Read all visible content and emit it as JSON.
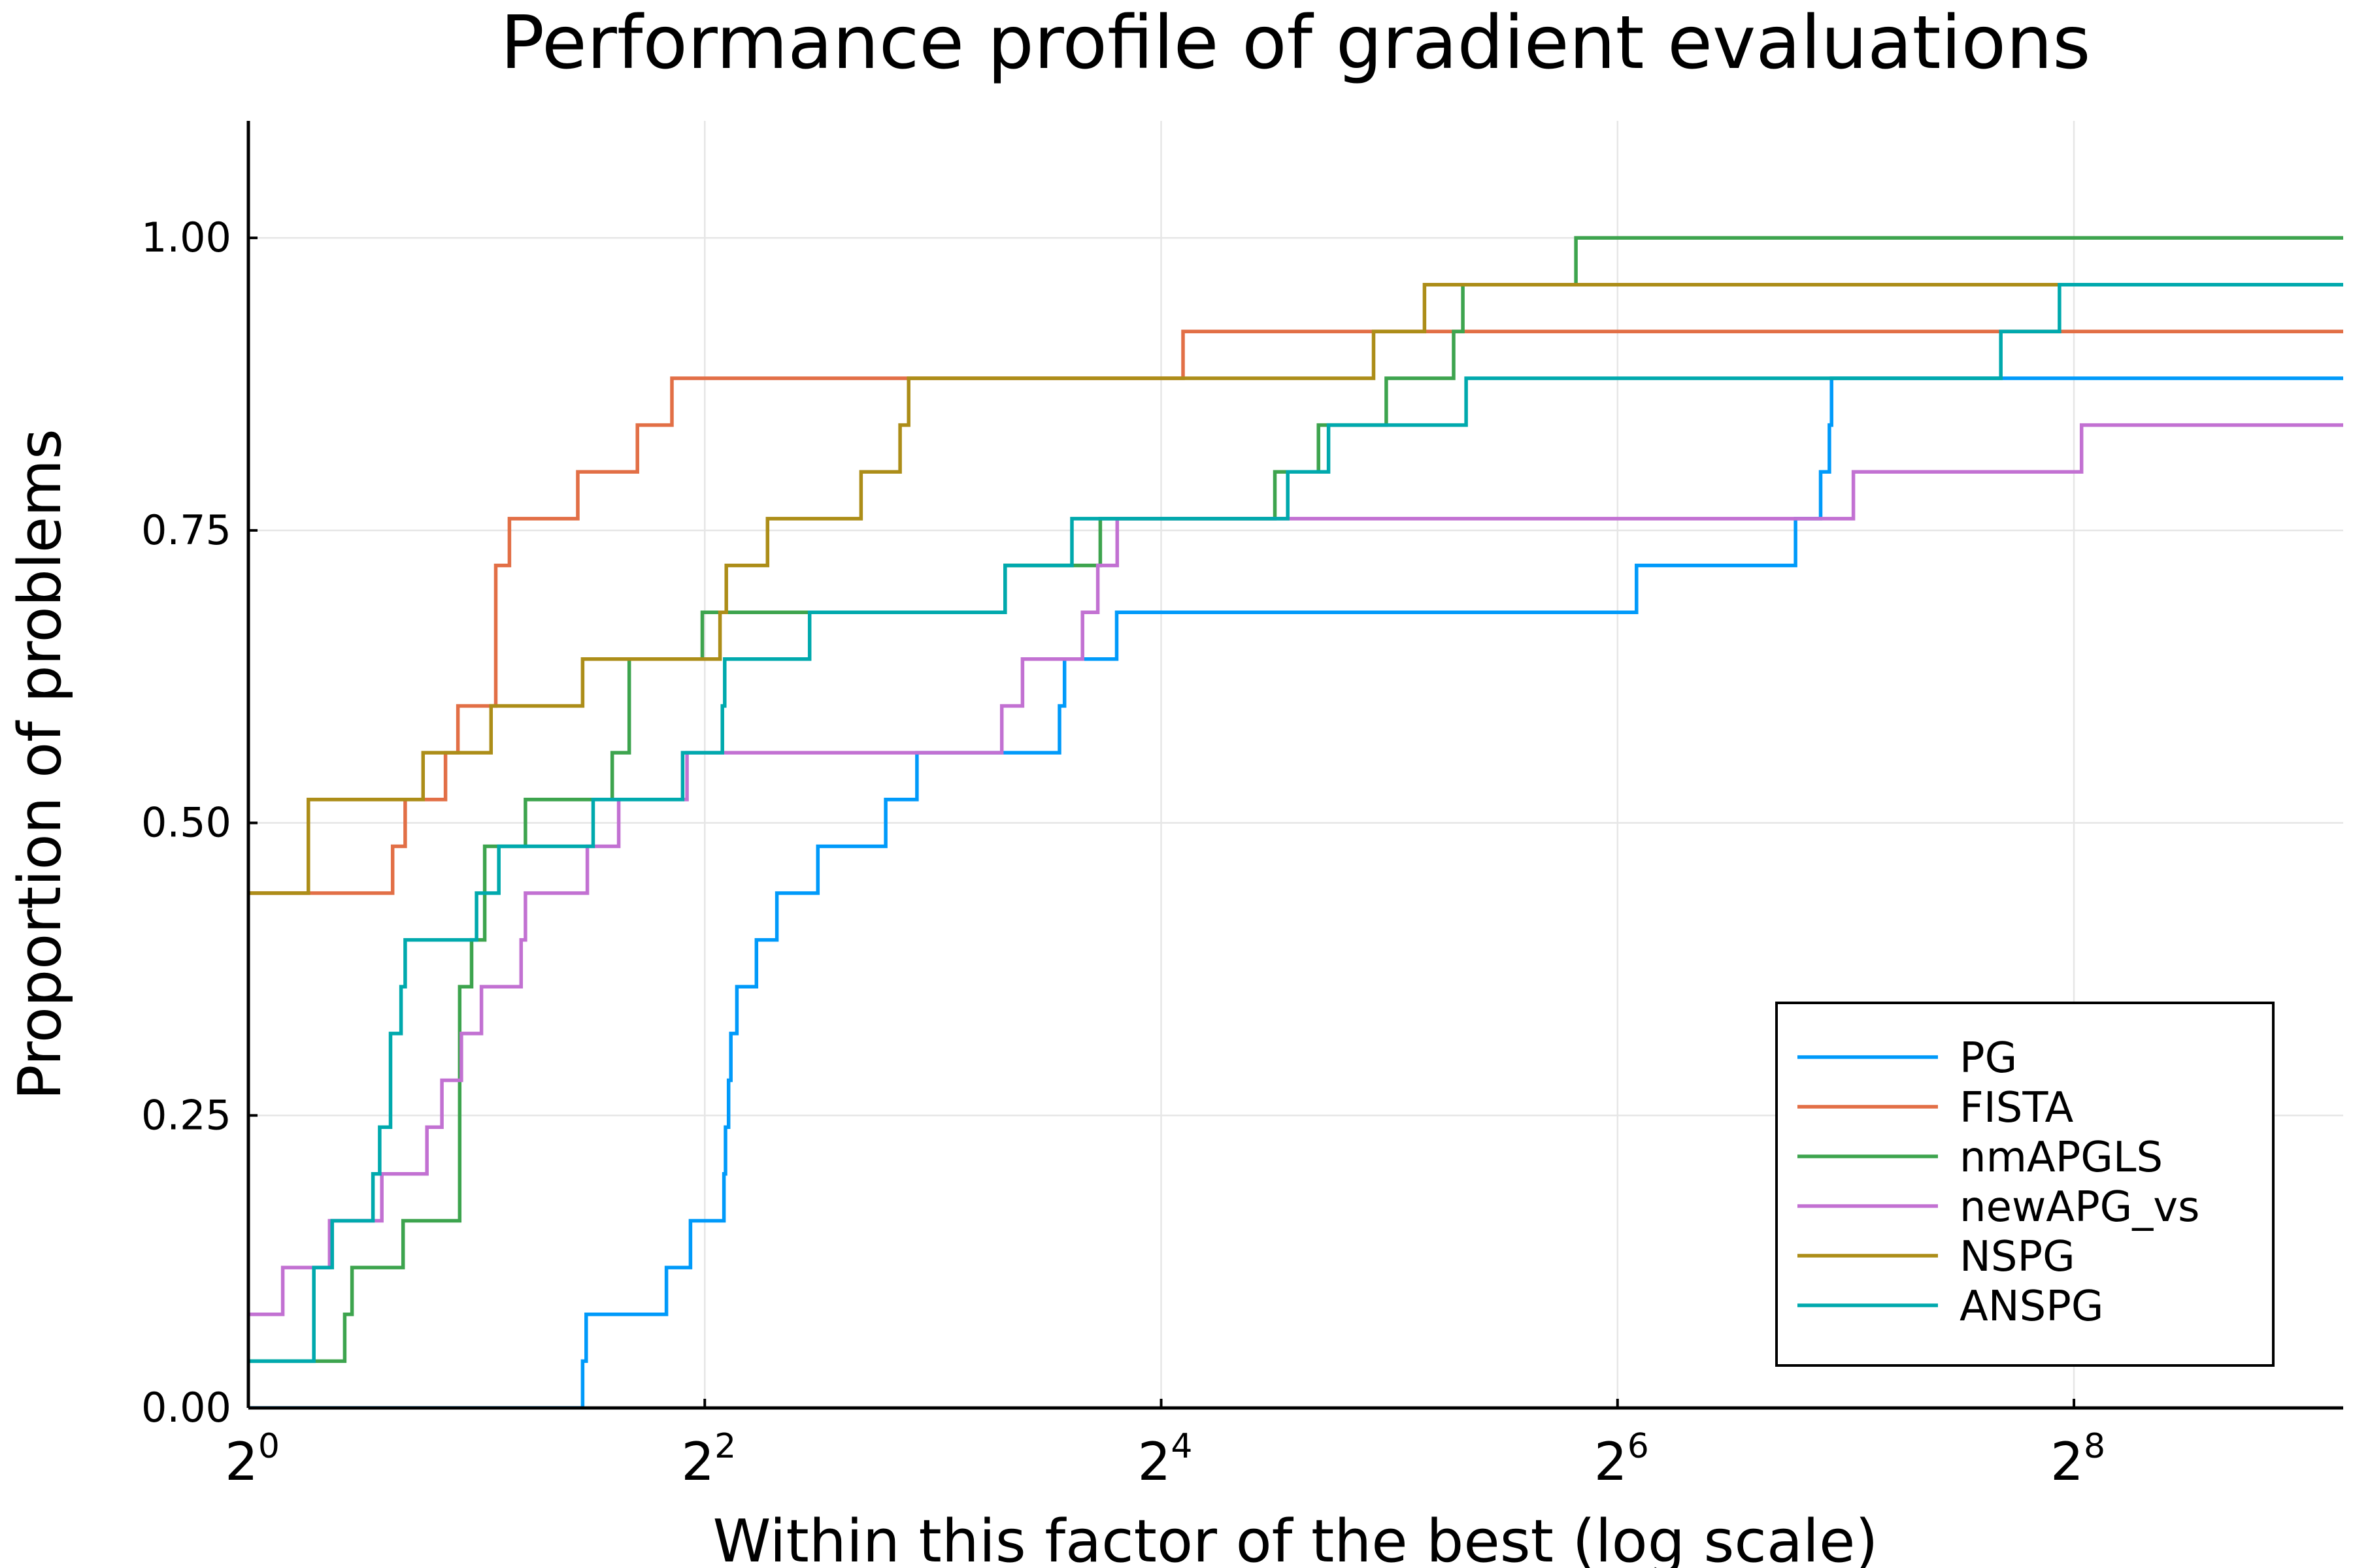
{
  "chart_data": {
    "type": "line",
    "step": true,
    "title": "Performance profile of gradient evaluations",
    "xlabel": "Within this factor of the best (log scale)",
    "ylabel": "Proportion of problems",
    "xscale": "log2",
    "xlim": [
      1,
      580
    ],
    "ylim": [
      0,
      1.1
    ],
    "x_ticks": [
      {
        "value": 1,
        "base": "2",
        "exp": "0"
      },
      {
        "value": 4,
        "base": "2",
        "exp": "2"
      },
      {
        "value": 16,
        "base": "2",
        "exp": "4"
      },
      {
        "value": 64,
        "base": "2",
        "exp": "6"
      },
      {
        "value": 256,
        "base": "2",
        "exp": "8"
      }
    ],
    "y_ticks": [
      {
        "value": 0,
        "label": "0.00"
      },
      {
        "value": 0.25,
        "label": "0.25"
      },
      {
        "value": 0.5,
        "label": "0.50"
      },
      {
        "value": 0.75,
        "label": "0.75"
      },
      {
        "value": 1,
        "label": "1.00"
      }
    ],
    "grid": true,
    "legend_position": "bottom-right",
    "series": [
      {
        "name": "PG",
        "color": "#009AFA",
        "points": [
          [
            1,
            0
          ],
          [
            2.76,
            0
          ],
          [
            2.76,
            0.04
          ],
          [
            2.79,
            0.04
          ],
          [
            2.79,
            0.08
          ],
          [
            3.56,
            0.08
          ],
          [
            3.56,
            0.12
          ],
          [
            3.83,
            0.12
          ],
          [
            3.83,
            0.16
          ],
          [
            4.24,
            0.16
          ],
          [
            4.24,
            0.2
          ],
          [
            4.26,
            0.2
          ],
          [
            4.26,
            0.24
          ],
          [
            4.3,
            0.24
          ],
          [
            4.3,
            0.28
          ],
          [
            4.33,
            0.28
          ],
          [
            4.33,
            0.32
          ],
          [
            4.41,
            0.32
          ],
          [
            4.41,
            0.36
          ],
          [
            4.68,
            0.36
          ],
          [
            4.68,
            0.4
          ],
          [
            4.98,
            0.4
          ],
          [
            4.98,
            0.44
          ],
          [
            5.64,
            0.44
          ],
          [
            5.64,
            0.48
          ],
          [
            6.93,
            0.48
          ],
          [
            6.93,
            0.52
          ],
          [
            7.62,
            0.52
          ],
          [
            7.62,
            0.56
          ],
          [
            11.75,
            0.56
          ],
          [
            11.75,
            0.6
          ],
          [
            11.93,
            0.6
          ],
          [
            11.93,
            0.64
          ],
          [
            13.98,
            0.64
          ],
          [
            13.98,
            0.68
          ],
          [
            67.8,
            0.68
          ],
          [
            67.8,
            0.72
          ],
          [
            109.9,
            0.72
          ],
          [
            109.9,
            0.76
          ],
          [
            118.6,
            0.76
          ],
          [
            118.6,
            0.8
          ],
          [
            121.8,
            0.8
          ],
          [
            121.8,
            0.84
          ],
          [
            122.6,
            0.84
          ],
          [
            122.6,
            0.88
          ],
          [
            580,
            0.88
          ]
        ]
      },
      {
        "name": "FISTA",
        "color": "#E26F46",
        "points": [
          [
            1,
            0.44
          ],
          [
            1.55,
            0.44
          ],
          [
            1.55,
            0.48
          ],
          [
            1.61,
            0.48
          ],
          [
            1.61,
            0.52
          ],
          [
            1.82,
            0.52
          ],
          [
            1.82,
            0.56
          ],
          [
            1.89,
            0.56
          ],
          [
            1.89,
            0.6
          ],
          [
            2.12,
            0.6
          ],
          [
            2.12,
            0.72
          ],
          [
            2.21,
            0.72
          ],
          [
            2.21,
            0.76
          ],
          [
            2.72,
            0.76
          ],
          [
            2.72,
            0.8
          ],
          [
            3.26,
            0.8
          ],
          [
            3.26,
            0.84
          ],
          [
            3.62,
            0.84
          ],
          [
            3.62,
            0.88
          ],
          [
            17.1,
            0.88
          ],
          [
            17.1,
            0.92
          ],
          [
            580,
            0.92
          ]
        ]
      },
      {
        "name": "nmAPGLS",
        "color": "#3DA44E",
        "points": [
          [
            1,
            0.04
          ],
          [
            1.34,
            0.04
          ],
          [
            1.34,
            0.08
          ],
          [
            1.37,
            0.08
          ],
          [
            1.37,
            0.12
          ],
          [
            1.6,
            0.12
          ],
          [
            1.6,
            0.16
          ],
          [
            1.9,
            0.16
          ],
          [
            1.9,
            0.36
          ],
          [
            1.97,
            0.36
          ],
          [
            1.97,
            0.4
          ],
          [
            2.05,
            0.4
          ],
          [
            2.05,
            0.48
          ],
          [
            2.32,
            0.48
          ],
          [
            2.32,
            0.52
          ],
          [
            3.02,
            0.52
          ],
          [
            3.02,
            0.56
          ],
          [
            3.18,
            0.56
          ],
          [
            3.18,
            0.64
          ],
          [
            3.97,
            0.64
          ],
          [
            3.97,
            0.68
          ],
          [
            9.96,
            0.68
          ],
          [
            9.96,
            0.72
          ],
          [
            13.3,
            0.72
          ],
          [
            13.3,
            0.76
          ],
          [
            22.6,
            0.76
          ],
          [
            22.6,
            0.8
          ],
          [
            25.8,
            0.8
          ],
          [
            25.8,
            0.84
          ],
          [
            31.7,
            0.84
          ],
          [
            31.7,
            0.88
          ],
          [
            38.9,
            0.88
          ],
          [
            38.9,
            0.92
          ],
          [
            40.0,
            0.92
          ],
          [
            40.0,
            0.96
          ],
          [
            56.4,
            0.96
          ],
          [
            56.4,
            1.0
          ],
          [
            580,
            1.0
          ]
        ]
      },
      {
        "name": "newAPG_vs",
        "color": "#C271D2",
        "points": [
          [
            1,
            0.08
          ],
          [
            1.11,
            0.08
          ],
          [
            1.11,
            0.12
          ],
          [
            1.28,
            0.12
          ],
          [
            1.28,
            0.16
          ],
          [
            1.5,
            0.16
          ],
          [
            1.5,
            0.2
          ],
          [
            1.72,
            0.2
          ],
          [
            1.72,
            0.24
          ],
          [
            1.8,
            0.24
          ],
          [
            1.8,
            0.28
          ],
          [
            1.91,
            0.28
          ],
          [
            1.91,
            0.32
          ],
          [
            2.03,
            0.32
          ],
          [
            2.03,
            0.36
          ],
          [
            2.29,
            0.36
          ],
          [
            2.29,
            0.4
          ],
          [
            2.32,
            0.4
          ],
          [
            2.32,
            0.44
          ],
          [
            2.8,
            0.44
          ],
          [
            2.8,
            0.48
          ],
          [
            3.08,
            0.48
          ],
          [
            3.08,
            0.52
          ],
          [
            3.79,
            0.52
          ],
          [
            3.79,
            0.56
          ],
          [
            9.86,
            0.56
          ],
          [
            9.86,
            0.6
          ],
          [
            10.5,
            0.6
          ],
          [
            10.5,
            0.64
          ],
          [
            12.6,
            0.64
          ],
          [
            12.6,
            0.68
          ],
          [
            13.2,
            0.68
          ],
          [
            13.2,
            0.72
          ],
          [
            14.0,
            0.72
          ],
          [
            14.0,
            0.76
          ],
          [
            131,
            0.76
          ],
          [
            131,
            0.8
          ],
          [
            262,
            0.8
          ],
          [
            262,
            0.84
          ],
          [
            580,
            0.84
          ]
        ]
      },
      {
        "name": "NSPG",
        "color": "#AC8D18",
        "points": [
          [
            1,
            0.44
          ],
          [
            1.2,
            0.44
          ],
          [
            1.2,
            0.52
          ],
          [
            1.7,
            0.52
          ],
          [
            1.7,
            0.56
          ],
          [
            2.09,
            0.56
          ],
          [
            2.09,
            0.6
          ],
          [
            2.76,
            0.6
          ],
          [
            2.76,
            0.64
          ],
          [
            4.19,
            0.64
          ],
          [
            4.19,
            0.68
          ],
          [
            4.27,
            0.68
          ],
          [
            4.27,
            0.72
          ],
          [
            4.84,
            0.72
          ],
          [
            4.84,
            0.76
          ],
          [
            6.43,
            0.76
          ],
          [
            6.43,
            0.8
          ],
          [
            7.24,
            0.8
          ],
          [
            7.24,
            0.84
          ],
          [
            7.43,
            0.84
          ],
          [
            7.43,
            0.88
          ],
          [
            30.5,
            0.88
          ],
          [
            30.5,
            0.92
          ],
          [
            35.6,
            0.92
          ],
          [
            35.6,
            0.96
          ],
          [
            580,
            0.96
          ]
        ]
      },
      {
        "name": "ANSPG",
        "color": "#00A9AD",
        "points": [
          [
            1,
            0.04
          ],
          [
            1.22,
            0.04
          ],
          [
            1.22,
            0.12
          ],
          [
            1.29,
            0.12
          ],
          [
            1.29,
            0.16
          ],
          [
            1.46,
            0.16
          ],
          [
            1.46,
            0.2
          ],
          [
            1.49,
            0.2
          ],
          [
            1.49,
            0.24
          ],
          [
            1.54,
            0.24
          ],
          [
            1.54,
            0.32
          ],
          [
            1.59,
            0.32
          ],
          [
            1.59,
            0.36
          ],
          [
            1.61,
            0.36
          ],
          [
            1.61,
            0.4
          ],
          [
            2.0,
            0.4
          ],
          [
            2.0,
            0.44
          ],
          [
            2.14,
            0.44
          ],
          [
            2.14,
            0.48
          ],
          [
            2.85,
            0.48
          ],
          [
            2.85,
            0.52
          ],
          [
            3.74,
            0.52
          ],
          [
            3.74,
            0.56
          ],
          [
            4.22,
            0.56
          ],
          [
            4.22,
            0.6
          ],
          [
            4.25,
            0.6
          ],
          [
            4.25,
            0.64
          ],
          [
            5.5,
            0.64
          ],
          [
            5.5,
            0.68
          ],
          [
            9.96,
            0.68
          ],
          [
            9.96,
            0.72
          ],
          [
            12.2,
            0.72
          ],
          [
            12.2,
            0.76
          ],
          [
            23.5,
            0.76
          ],
          [
            23.5,
            0.8
          ],
          [
            26.6,
            0.8
          ],
          [
            26.6,
            0.84
          ],
          [
            40.4,
            0.84
          ],
          [
            40.4,
            0.88
          ],
          [
            205,
            0.88
          ],
          [
            205,
            0.92
          ],
          [
            245,
            0.92
          ],
          [
            245,
            0.96
          ],
          [
            580,
            0.96
          ]
        ]
      }
    ]
  }
}
